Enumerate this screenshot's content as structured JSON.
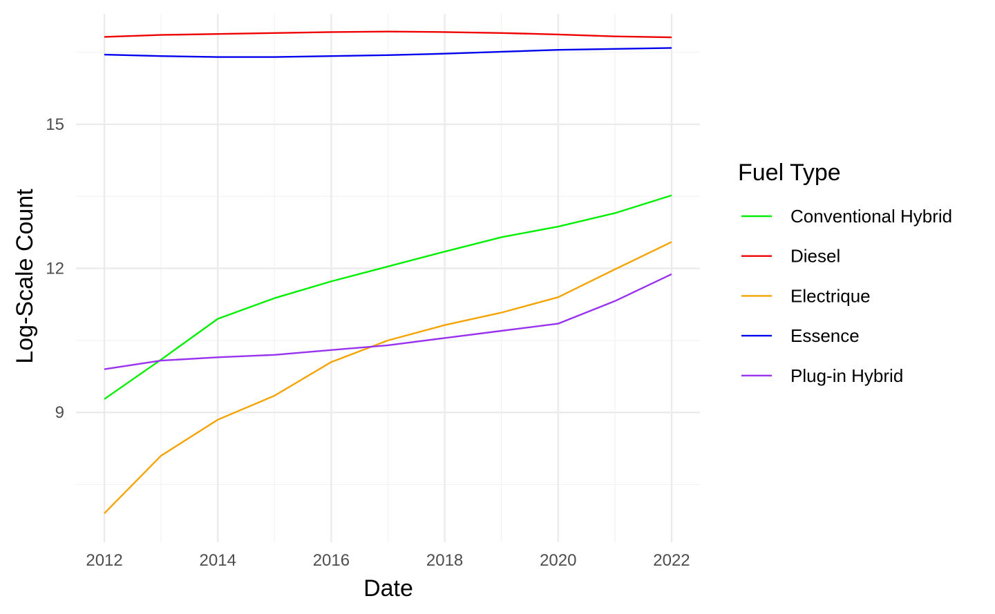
{
  "chart_data": {
    "type": "line",
    "title": "",
    "xlabel": "Date",
    "ylabel": "Log-Scale Count",
    "x": [
      2012,
      2013,
      2014,
      2015,
      2016,
      2017,
      2018,
      2019,
      2020,
      2021,
      2022
    ],
    "x_ticks": [
      "2012",
      "2014",
      "2016",
      "2018",
      "2020",
      "2022"
    ],
    "y_ticks": [
      "9",
      "12",
      "15"
    ],
    "xlim": [
      2011.5,
      2022.5
    ],
    "ylim": [
      6.3,
      17.3
    ],
    "grid": true,
    "legend": {
      "title": "Fuel Type",
      "position": "right"
    },
    "series": [
      {
        "name": "Conventional Hybrid",
        "color": "#00EE00",
        "values": [
          9.28,
          10.1,
          10.95,
          11.38,
          11.73,
          12.04,
          12.35,
          12.65,
          12.87,
          13.15,
          13.52
        ]
      },
      {
        "name": "Diesel",
        "color": "#EE0000",
        "values": [
          16.82,
          16.86,
          16.88,
          16.9,
          16.92,
          16.93,
          16.92,
          16.9,
          16.87,
          16.83,
          16.81
        ]
      },
      {
        "name": "Electrique",
        "color": "#F5A300",
        "values": [
          6.9,
          8.1,
          8.85,
          9.35,
          10.05,
          10.5,
          10.82,
          11.08,
          11.4,
          11.98,
          12.55
        ]
      },
      {
        "name": "Essence",
        "color": "#0000EE",
        "values": [
          16.45,
          16.42,
          16.4,
          16.4,
          16.42,
          16.44,
          16.47,
          16.51,
          16.55,
          16.57,
          16.59
        ]
      },
      {
        "name": "Plug-in Hybrid",
        "color": "#9932EE",
        "values": [
          9.9,
          10.08,
          10.15,
          10.2,
          10.3,
          10.4,
          10.55,
          10.7,
          10.85,
          11.32,
          11.88
        ]
      }
    ]
  }
}
